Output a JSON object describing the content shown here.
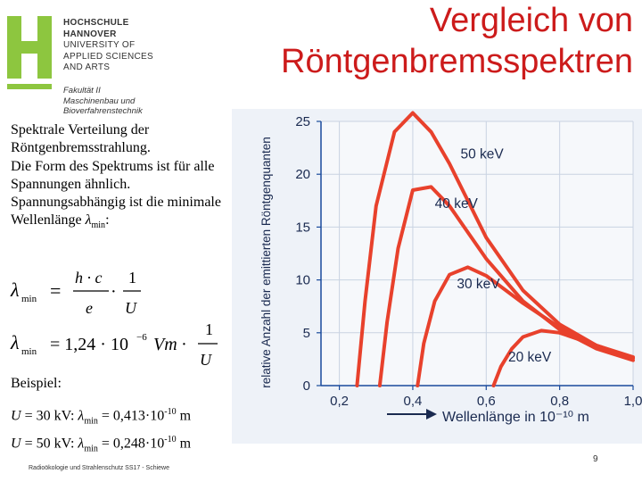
{
  "logo": {
    "lines": [
      "HOCHSCHULE",
      "HANNOVER",
      "UNIVERSITY OF",
      "APPLIED SCIENCES",
      "AND ARTS"
    ],
    "faculty_lines": [
      "Fakultät II",
      "Maschinenbau und",
      "Bioverfahrenstechnik"
    ],
    "mark_color": "#8dc63f"
  },
  "title": {
    "line1": "Vergleich von",
    "line2": "Röntgenbremsspektren",
    "color": "#cc1b1b"
  },
  "body": {
    "p1": "Spektrale Verteilung der Röntgenbremsstrahlung.",
    "p2": "Die Form des Spektrums ist für alle Spannungen ähnlich.",
    "p3_before": "Spannungsabhängig ist die minimale Wellenlänge ",
    "p3_symbol": "λ",
    "p3_sub": "min",
    "p3_after": ":"
  },
  "formula": {
    "lambda": "λ",
    "min": "min",
    "eq1_num": "h · c",
    "eq1_den": "e",
    "one": "1",
    "U": "U",
    "eq2_coef": "= 1,24 · 10",
    "eq2_exp": "−6",
    "eq2_unit": "Vm ·"
  },
  "example": {
    "heading": "Beispiel:",
    "row1_u": "U",
    "row1_text": " = 30 kV: ",
    "row1_value": " = 0,413·10",
    "row1_exp": "-10",
    "row1_unit": " m",
    "row2_u": "U",
    "row2_text": " = 50 kV: ",
    "row2_value": " = 0,248·10",
    "row2_exp": "-10",
    "row2_unit": " m"
  },
  "footer": "Radioökologie und Strahlenschutz SS17 - Schiewe",
  "page_number": "9",
  "chart_data": {
    "type": "line",
    "ylabel": "relative Anzahl der emittierten Röntgenquanten",
    "xlabel": "Wellenlänge in 10⁻¹⁰ m",
    "yticks": [
      "0",
      "5",
      "10",
      "15",
      "20",
      "25"
    ],
    "xticks": [
      "0,2",
      "0,4",
      "0,6",
      "0,8",
      "1,0"
    ],
    "xlim": [
      0.15,
      1.0
    ],
    "ylim": [
      0,
      25
    ],
    "grid": true,
    "colors": {
      "curve": "#e8412c",
      "axis": "#1a4b9c",
      "plot_bg": "#eef2f8",
      "grid": "#c9d3e2"
    },
    "series": [
      {
        "name": "50 keV",
        "x": [
          0.248,
          0.27,
          0.3,
          0.35,
          0.4,
          0.45,
          0.5,
          0.6,
          0.7,
          0.8,
          0.9,
          1.0
        ],
        "y": [
          0,
          8,
          17,
          24,
          25.8,
          24,
          21,
          14,
          9,
          5.8,
          3.8,
          2.6
        ]
      },
      {
        "name": "40 keV",
        "x": [
          0.31,
          0.33,
          0.36,
          0.4,
          0.45,
          0.5,
          0.6,
          0.7,
          0.8,
          0.9,
          1.0
        ],
        "y": [
          0,
          6,
          13,
          18.5,
          18.8,
          17,
          12,
          8,
          5.3,
          3.5,
          2.4
        ]
      },
      {
        "name": "30 keV",
        "x": [
          0.413,
          0.43,
          0.46,
          0.5,
          0.55,
          0.6,
          0.7,
          0.8,
          0.9,
          1.0
        ],
        "y": [
          0,
          4,
          8,
          10.5,
          11.2,
          10.4,
          7.8,
          5.5,
          3.8,
          2.6
        ]
      },
      {
        "name": "20 keV",
        "x": [
          0.62,
          0.64,
          0.67,
          0.7,
          0.75,
          0.8,
          0.9,
          1.0
        ],
        "y": [
          0,
          1.8,
          3.5,
          4.6,
          5.2,
          5.0,
          3.8,
          2.7
        ]
      }
    ]
  }
}
